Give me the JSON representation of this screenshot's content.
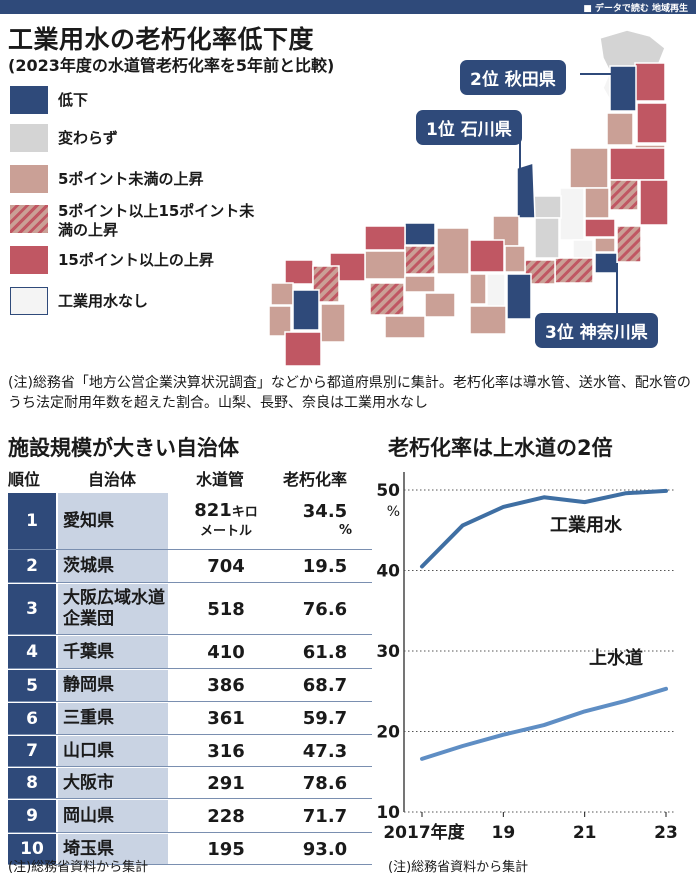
{
  "header": {
    "tag": "■ データで読む 地域再生"
  },
  "title": "工業用水の老朽化率低下度",
  "subtitle": "(2023年度の水道管老朽化率を5年前と比較)",
  "legend": [
    {
      "label": "低下",
      "color": "#2f4a7a"
    },
    {
      "label": "変わらず",
      "color": "#d4d4d4"
    },
    {
      "label": "5ポイント未満の上昇",
      "color": "#caa096"
    },
    {
      "label": "5ポイント以上15ポイント未満の上昇",
      "color": "#c05763"
    },
    {
      "label": "15ポイント以上の上昇",
      "color": "#c05763"
    },
    {
      "label": "工業用水なし",
      "color": "#f4f4f4"
    }
  ],
  "callouts": {
    "first": "1位 石川県",
    "second": "2位 秋田県",
    "third": "3位 神奈川県"
  },
  "note": "(注)総務省「地方公営企業決算状況調査」などから都道府県別に集計。老朽化率は導水管、送水管、配水管のうち法定耐用年数を超えた割合。山梨、長野、奈良は工業用水なし",
  "table": {
    "title": "施設規模が大きい自治体",
    "headers": {
      "rank": "順位",
      "name": "自治体",
      "pipe": "水道管",
      "rate": "老朽化率"
    },
    "first_pipe_unit": "キロメートル",
    "first_rate_unit": "%",
    "rows": [
      {
        "rank": "1",
        "name": "愛知県",
        "pipe": "821",
        "rate": "34.5"
      },
      {
        "rank": "2",
        "name": "茨城県",
        "pipe": "704",
        "rate": "19.5"
      },
      {
        "rank": "3",
        "name": "大阪広域水道企業団",
        "pipe": "518",
        "rate": "76.6"
      },
      {
        "rank": "4",
        "name": "千葉県",
        "pipe": "410",
        "rate": "61.8"
      },
      {
        "rank": "5",
        "name": "静岡県",
        "pipe": "386",
        "rate": "68.7"
      },
      {
        "rank": "6",
        "name": "三重県",
        "pipe": "361",
        "rate": "59.7"
      },
      {
        "rank": "7",
        "name": "山口県",
        "pipe": "316",
        "rate": "47.3"
      },
      {
        "rank": "8",
        "name": "大阪市",
        "pipe": "291",
        "rate": "78.6"
      },
      {
        "rank": "9",
        "name": "岡山県",
        "pipe": "228",
        "rate": "71.7"
      },
      {
        "rank": "10",
        "name": "埼玉県",
        "pipe": "195",
        "rate": "93.0"
      }
    ],
    "source": "(注)総務省資料から集計"
  },
  "chart_title": "老朽化率は上水道の2倍",
  "chart_data": {
    "type": "line",
    "title": "老朽化率は上水道の2倍",
    "x": [
      2017,
      2018,
      2019,
      2020,
      2021,
      2022,
      2023
    ],
    "xtick_labels": [
      "2017年度",
      "19",
      "21",
      "23"
    ],
    "xticks": [
      2017,
      2019,
      2021,
      2023
    ],
    "yticks": [
      10,
      20,
      30,
      40,
      50
    ],
    "ylabel": "%",
    "ylim": [
      10,
      51
    ],
    "series": [
      {
        "name": "工業用水",
        "values": [
          40.5,
          45.6,
          47.9,
          49.1,
          48.5,
          49.6,
          49.9
        ],
        "color": "#3f6fa3"
      },
      {
        "name": "上水道",
        "values": [
          16.6,
          18.2,
          19.6,
          20.8,
          22.5,
          23.8,
          25.3
        ],
        "color": "#5f8ec4"
      }
    ],
    "source": "(注)総務省資料から集計"
  }
}
